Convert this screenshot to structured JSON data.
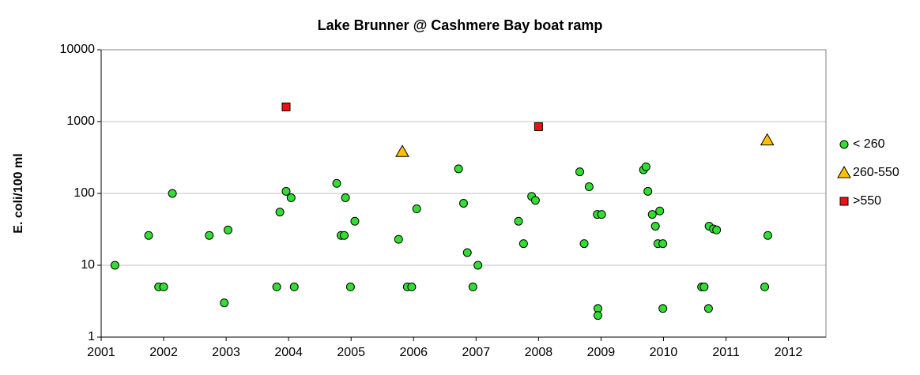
{
  "chart_data": {
    "type": "scatter",
    "title": "Lake Brunner @ Cashmere Bay boat ramp",
    "ylabel": "E. coli/100 ml",
    "log_y": true,
    "grid": true,
    "legend": "right",
    "xlim": [
      2001,
      2012.6
    ],
    "xticks": [
      2001,
      2002,
      2003,
      2004,
      2005,
      2006,
      2007,
      2008,
      2009,
      2010,
      2011,
      2012
    ],
    "ylim": [
      1,
      10000
    ],
    "yticks": [
      1,
      10,
      100,
      1000,
      10000
    ],
    "series": [
      {
        "name": "< 260",
        "color": "#33dd33",
        "marker": "circle",
        "x": [
          2001.22,
          2001.76,
          2001.92,
          2002.0,
          2002.14,
          2002.73,
          2002.97,
          2003.03,
          2003.81,
          2003.86,
          2003.96,
          2004.04,
          2004.09,
          2004.77,
          2004.84,
          2004.89,
          2004.91,
          2004.99,
          2005.06,
          2005.76,
          2005.9,
          2005.97,
          2006.05,
          2006.72,
          2006.8,
          2006.86,
          2006.95,
          2007.03,
          2007.68,
          2007.76,
          2007.89,
          2007.95,
          2008.66,
          2008.73,
          2008.81,
          2008.94,
          2008.95,
          2008.95,
          2009.01,
          2009.68,
          2009.72,
          2009.75,
          2009.82,
          2009.87,
          2009.91,
          2009.94,
          2009.99,
          2009.99,
          2010.61,
          2010.65,
          2010.72,
          2010.73,
          2010.8,
          2010.85,
          2011.62,
          2011.67
        ],
        "values": [
          10,
          26,
          5,
          5,
          100,
          26,
          3,
          31,
          5,
          55,
          107,
          87,
          5,
          138,
          26,
          26,
          87,
          5,
          41,
          23,
          5,
          5,
          61,
          220,
          73,
          15,
          5,
          10,
          41,
          20,
          91,
          80,
          200,
          20,
          124,
          51,
          2.5,
          2,
          51,
          213,
          235,
          107,
          51,
          35,
          20,
          57,
          20,
          2.5,
          5,
          5,
          2.5,
          35,
          32,
          31,
          5,
          26
        ]
      },
      {
        "name": "260-550",
        "color": "#ffc000",
        "marker": "triangle",
        "x": [
          2005.82,
          2011.66
        ],
        "values": [
          380,
          550
        ]
      },
      {
        "name": ">550",
        "color": "#ee1111",
        "marker": "square",
        "x": [
          2003.96,
          2008.0
        ],
        "values": [
          1600,
          850
        ]
      }
    ]
  }
}
